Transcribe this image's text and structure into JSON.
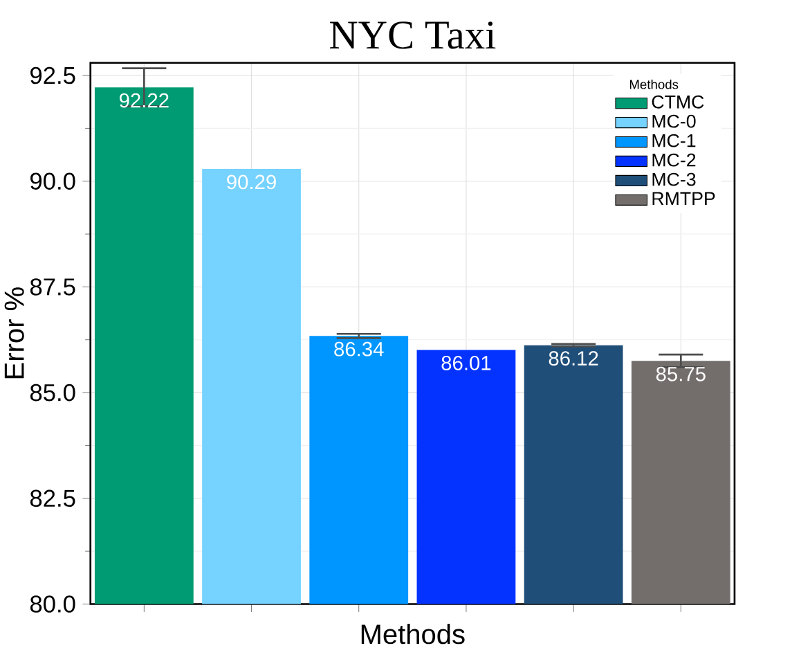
{
  "chart_data": {
    "type": "bar",
    "title": "NYC Taxi",
    "xlabel": "Methods",
    "ylabel": "Error %",
    "legend_title": "Methods",
    "categories": [
      null,
      null,
      null,
      null,
      null,
      null
    ],
    "series": [
      {
        "name": "CTMC",
        "color": "#009b72",
        "values": [
          92.22,
          null,
          null,
          null,
          null,
          null
        ],
        "errors": [
          0.45,
          null,
          null,
          null,
          null,
          null
        ]
      },
      {
        "name": "MC-0",
        "color": "#76d2ff",
        "values": [
          null,
          90.29,
          null,
          null,
          null,
          null
        ],
        "errors": [
          null,
          null,
          null,
          null,
          null,
          null
        ]
      },
      {
        "name": "MC-1",
        "color": "#0096ff",
        "values": [
          null,
          null,
          86.34,
          null,
          null,
          null
        ],
        "errors": [
          null,
          null,
          0.05,
          null,
          null,
          null
        ]
      },
      {
        "name": "MC-2",
        "color": "#0433ff",
        "values": [
          null,
          null,
          null,
          86.01,
          null,
          null
        ],
        "errors": [
          null,
          null,
          null,
          null,
          null,
          null
        ]
      },
      {
        "name": "MC-3",
        "color": "#1f4e79",
        "values": [
          null,
          null,
          null,
          null,
          86.12,
          null
        ],
        "errors": [
          null,
          null,
          null,
          null,
          0.03,
          null
        ]
      },
      {
        "name": "RMTPP",
        "color": "#736e6c",
        "values": [
          null,
          null,
          null,
          null,
          null,
          85.75
        ],
        "errors": [
          null,
          null,
          null,
          null,
          null,
          0.15
        ]
      }
    ],
    "ylim": [
      80,
      92.8
    ],
    "yticks": [
      {
        "value": 80,
        "label": "80.0"
      },
      82.5,
      {
        "value": 85,
        "label": "85.0"
      },
      87.5,
      {
        "value": 90,
        "label": "90.0"
      },
      92.5
    ],
    "grid": true,
    "legend": "top right",
    "data_labels": true
  }
}
